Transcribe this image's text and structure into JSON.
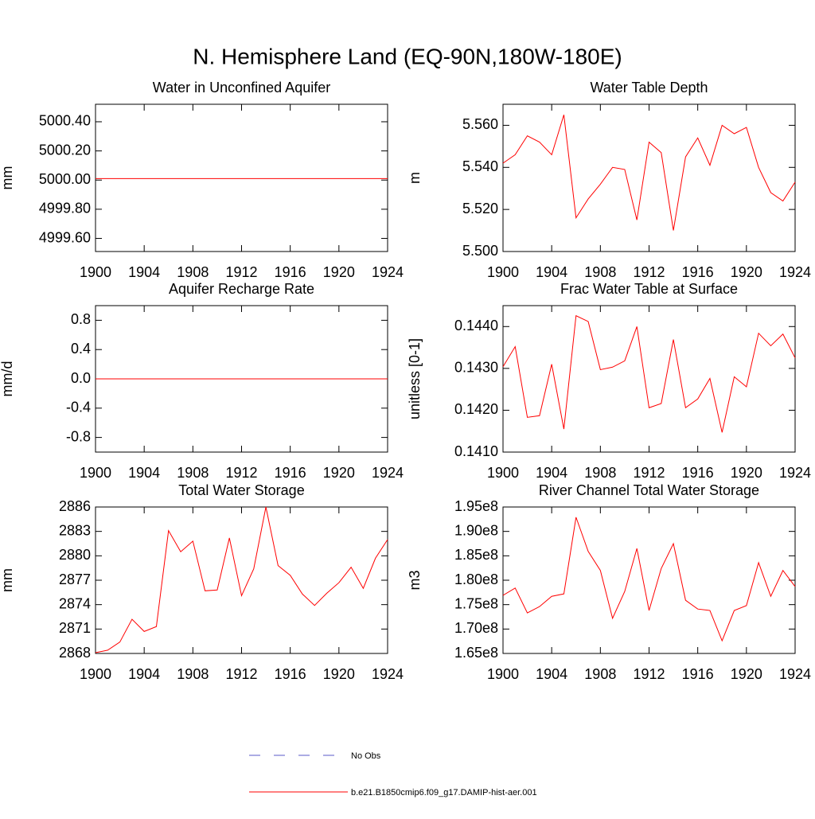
{
  "title": "N. Hemisphere Land (EQ-90N,180W-180E)",
  "legend": [
    {
      "name": "No Obs",
      "color": "#5a5ac8",
      "style": "dashed"
    },
    {
      "name": "b.e21.B1850cmip6.f09_g17.DAMIP-hist-aer.001",
      "color": "#ff0000",
      "style": "solid"
    }
  ],
  "chart_data": [
    {
      "type": "line",
      "title": "Water in Unconfined Aquifer",
      "ylabel": "mm",
      "color": "#ff0000",
      "x": [
        1900,
        1901,
        1902,
        1903,
        1904,
        1905,
        1906,
        1907,
        1908,
        1909,
        1910,
        1911,
        1912,
        1913,
        1914,
        1915,
        1916,
        1917,
        1918,
        1919,
        1920,
        1921,
        1922,
        1923,
        1924
      ],
      "values": [
        5000.01,
        5000.01,
        5000.01,
        5000.01,
        5000.01,
        5000.01,
        5000.01,
        5000.01,
        5000.01,
        5000.01,
        5000.01,
        5000.01,
        5000.01,
        5000.01,
        5000.01,
        5000.01,
        5000.01,
        5000.01,
        5000.01,
        5000.01,
        5000.01,
        5000.01,
        5000.01,
        5000.01,
        5000.01
      ],
      "xlim": [
        1900,
        1924
      ],
      "xticks": [
        1900,
        1904,
        1908,
        1912,
        1916,
        1920,
        1924
      ],
      "ylim": [
        4999.51,
        5000.52
      ],
      "yticks": [
        {
          "value": 4999.6,
          "label": "4999.60"
        },
        {
          "value": 4999.8,
          "label": "4999.80"
        },
        {
          "value": 5000,
          "label": "5000.00"
        },
        {
          "value": 5000.2,
          "label": "5000.20"
        },
        {
          "value": 5000.4,
          "label": "5000.40"
        }
      ]
    },
    {
      "type": "line",
      "title": "Water Table Depth",
      "ylabel": "m",
      "color": "#ff0000",
      "x": [
        1900,
        1901,
        1902,
        1903,
        1904,
        1905,
        1906,
        1907,
        1908,
        1909,
        1910,
        1911,
        1912,
        1913,
        1914,
        1915,
        1916,
        1917,
        1918,
        1919,
        1920,
        1921,
        1922,
        1923,
        1924
      ],
      "values": [
        5.542,
        5.546,
        5.555,
        5.552,
        5.546,
        5.565,
        5.516,
        5.525,
        5.532,
        5.54,
        5.539,
        5.515,
        5.552,
        5.547,
        5.51,
        5.545,
        5.554,
        5.541,
        5.56,
        5.556,
        5.559,
        5.54,
        5.528,
        5.524,
        5.533
      ],
      "xlim": [
        1900,
        1924
      ],
      "xticks": [
        1900,
        1904,
        1908,
        1912,
        1916,
        1920,
        1924
      ],
      "ylim": [
        5.5,
        5.57
      ],
      "yticks": [
        {
          "value": 5.5,
          "label": "5.500"
        },
        {
          "value": 5.52,
          "label": "5.520"
        },
        {
          "value": 5.54,
          "label": "5.540"
        },
        {
          "value": 5.56,
          "label": "5.560"
        }
      ]
    },
    {
      "type": "line",
      "title": "Aquifer Recharge Rate",
      "ylabel": "mm/d",
      "color": "#ff0000",
      "x": [
        1900,
        1901,
        1902,
        1903,
        1904,
        1905,
        1906,
        1907,
        1908,
        1909,
        1910,
        1911,
        1912,
        1913,
        1914,
        1915,
        1916,
        1917,
        1918,
        1919,
        1920,
        1921,
        1922,
        1923,
        1924
      ],
      "values": [
        0,
        0,
        0,
        0,
        0,
        0,
        0,
        0,
        0,
        0,
        0,
        0,
        0,
        0,
        0,
        0,
        0,
        0,
        0,
        0,
        0,
        0,
        0,
        0,
        0
      ],
      "xlim": [
        1900,
        1924
      ],
      "xticks": [
        1900,
        1904,
        1908,
        1912,
        1916,
        1920,
        1924
      ],
      "ylim": [
        -1,
        1
      ],
      "yticks": [
        -0.8,
        -0.4,
        {
          "value": 0,
          "label": "0.0"
        },
        0.4,
        0.8
      ]
    },
    {
      "type": "line",
      "title": "Frac Water Table at Surface",
      "ylabel": "unitless [0-1]",
      "color": "#ff0000",
      "x": [
        1900,
        1901,
        1902,
        1903,
        1904,
        1905,
        1906,
        1907,
        1908,
        1909,
        1910,
        1911,
        1912,
        1913,
        1914,
        1915,
        1916,
        1917,
        1918,
        1919,
        1920,
        1921,
        1922,
        1923,
        1924
      ],
      "values": [
        0.14304,
        0.14352,
        0.14183,
        0.14187,
        0.1431,
        0.14155,
        0.14426,
        0.14412,
        0.14297,
        0.14303,
        0.14318,
        0.144,
        0.14206,
        0.14216,
        0.14369,
        0.14206,
        0.14227,
        0.14276,
        0.14147,
        0.1428,
        0.14256,
        0.14384,
        0.14354,
        0.14382,
        0.14325
      ],
      "xlim": [
        1900,
        1924
      ],
      "xticks": [
        1900,
        1904,
        1908,
        1912,
        1916,
        1920,
        1924
      ],
      "ylim": [
        0.141,
        0.1445
      ],
      "yticks": [
        {
          "value": 0.141,
          "label": "0.1410"
        },
        {
          "value": 0.142,
          "label": "0.1420"
        },
        {
          "value": 0.143,
          "label": "0.1430"
        },
        {
          "value": 0.144,
          "label": "0.1440"
        }
      ]
    },
    {
      "type": "line",
      "title": "Total Water Storage",
      "ylabel": "mm",
      "color": "#ff0000",
      "x": [
        1900,
        1901,
        1902,
        1903,
        1904,
        1905,
        1906,
        1907,
        1908,
        1909,
        1910,
        1911,
        1912,
        1913,
        1914,
        1915,
        1916,
        1917,
        1918,
        1919,
        1920,
        1921,
        1922,
        1923,
        1924
      ],
      "values": [
        2868.1,
        2868.4,
        2869.4,
        2872.2,
        2870.7,
        2871.3,
        2883.1,
        2880.5,
        2881.8,
        2875.7,
        2875.8,
        2882.2,
        2875.1,
        2878.4,
        2886.0,
        2878.8,
        2877.6,
        2875.3,
        2873.9,
        2875.4,
        2876.7,
        2878.6,
        2876.0,
        2879.7,
        2882.0
      ],
      "xlim": [
        1900,
        1924
      ],
      "xticks": [
        1900,
        1904,
        1908,
        1912,
        1916,
        1920,
        1924
      ],
      "ylim": [
        2868,
        2886
      ],
      "yticks": [
        2868,
        2871,
        2874,
        2877,
        2880,
        2883,
        2886
      ]
    },
    {
      "type": "line",
      "title": "River Channel Total Water Storage",
      "ylabel": "m3",
      "color": "#ff0000",
      "x": [
        1900,
        1901,
        1902,
        1903,
        1904,
        1905,
        1906,
        1907,
        1908,
        1909,
        1910,
        1911,
        1912,
        1913,
        1914,
        1915,
        1916,
        1917,
        1918,
        1919,
        1920,
        1921,
        1922,
        1923,
        1924
      ],
      "values": [
        176900000,
        178400000,
        173300000,
        174600000,
        176700000,
        177200000,
        192900000,
        185900000,
        182000000,
        172200000,
        177700000,
        186500000,
        173800000,
        182400000,
        187500000,
        175900000,
        174100000,
        173800000,
        167600000,
        173800000,
        174800000,
        183600000,
        176700000,
        182000000,
        178700000
      ],
      "xlim": [
        1900,
        1924
      ],
      "xticks": [
        1900,
        1904,
        1908,
        1912,
        1916,
        1920,
        1924
      ],
      "ylim": [
        165000000,
        195000000
      ],
      "yticks": [
        {
          "value": 165000000,
          "label": "1.65e8"
        },
        {
          "value": 170000000,
          "label": "1.70e8"
        },
        {
          "value": 175000000,
          "label": "1.75e8"
        },
        {
          "value": 180000000,
          "label": "1.80e8"
        },
        {
          "value": 185000000,
          "label": "1.85e8"
        },
        {
          "value": 190000000,
          "label": "1.90e8"
        },
        {
          "value": 195000000,
          "label": "1.95e8"
        }
      ]
    }
  ]
}
